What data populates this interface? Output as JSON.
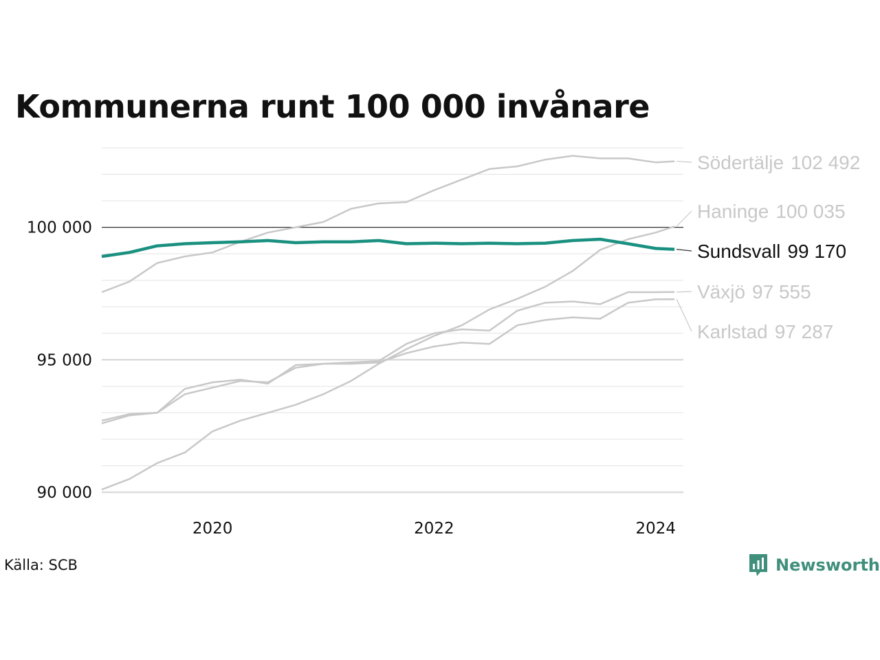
{
  "title": "Kommunerna runt 100 000 invånare",
  "source": "Källa: SCB",
  "brand": {
    "name": "Newsworthy",
    "icon": "newsworthy-bar-chart-icon",
    "color": "#3f8f7c"
  },
  "chart_data": {
    "type": "line",
    "title": "Kommunerna runt 100 000 invånare",
    "xlabel": "",
    "ylabel": "",
    "xlim": [
      2019.0,
      2024.25
    ],
    "ylim": [
      90000,
      103000
    ],
    "ytick_values": [
      90000,
      95000,
      100000
    ],
    "ytick_labels": [
      "90 000",
      "95 000",
      "100 000"
    ],
    "xtick_values": [
      2020,
      2022,
      2024
    ],
    "xtick_labels": [
      "2020",
      "2022",
      "2024"
    ],
    "minor_gridlines": [
      91000,
      92000,
      93000,
      94000,
      96000,
      97000,
      98000,
      99000,
      101000,
      102000,
      103000
    ],
    "reference_line": 100000,
    "grid": true,
    "legend": "end-labels-right",
    "highlight_color": "#1a9080",
    "muted_color": "#c8c8c8",
    "series": [
      {
        "name": "Södertälje",
        "end_value_label": "102 492",
        "highlight": false,
        "points": [
          [
            2019.0,
            97550
          ],
          [
            2019.25,
            97950
          ],
          [
            2019.5,
            98650
          ],
          [
            2019.75,
            98900
          ],
          [
            2020.0,
            99050
          ],
          [
            2020.25,
            99450
          ],
          [
            2020.5,
            99800
          ],
          [
            2020.75,
            100000
          ],
          [
            2021.0,
            100200
          ],
          [
            2021.25,
            100700
          ],
          [
            2021.5,
            100900
          ],
          [
            2021.75,
            100950
          ],
          [
            2022.0,
            101400
          ],
          [
            2022.25,
            101800
          ],
          [
            2022.5,
            102200
          ],
          [
            2022.75,
            102300
          ],
          [
            2023.0,
            102550
          ],
          [
            2023.25,
            102700
          ],
          [
            2023.5,
            102600
          ],
          [
            2023.75,
            102600
          ],
          [
            2024.0,
            102450
          ],
          [
            2024.17,
            102492
          ]
        ]
      },
      {
        "name": "Haninge",
        "end_value_label": "100 035",
        "highlight": false,
        "points": [
          [
            2019.0,
            90100
          ],
          [
            2019.25,
            90500
          ],
          [
            2019.5,
            91100
          ],
          [
            2019.75,
            91500
          ],
          [
            2020.0,
            92300
          ],
          [
            2020.25,
            92700
          ],
          [
            2020.5,
            93000
          ],
          [
            2020.75,
            93300
          ],
          [
            2021.0,
            93700
          ],
          [
            2021.25,
            94200
          ],
          [
            2021.5,
            94850
          ],
          [
            2021.75,
            95400
          ],
          [
            2022.0,
            95900
          ],
          [
            2022.25,
            96300
          ],
          [
            2022.5,
            96900
          ],
          [
            2022.75,
            97300
          ],
          [
            2023.0,
            97750
          ],
          [
            2023.25,
            98350
          ],
          [
            2023.5,
            99150
          ],
          [
            2023.75,
            99550
          ],
          [
            2024.0,
            99800
          ],
          [
            2024.17,
            100035
          ]
        ]
      },
      {
        "name": "Sundsvall",
        "end_value_label": "99 170",
        "highlight": true,
        "points": [
          [
            2019.0,
            98900
          ],
          [
            2019.25,
            99050
          ],
          [
            2019.5,
            99300
          ],
          [
            2019.75,
            99380
          ],
          [
            2020.0,
            99420
          ],
          [
            2020.25,
            99450
          ],
          [
            2020.5,
            99500
          ],
          [
            2020.75,
            99420
          ],
          [
            2021.0,
            99450
          ],
          [
            2021.25,
            99450
          ],
          [
            2021.5,
            99500
          ],
          [
            2021.75,
            99380
          ],
          [
            2022.0,
            99400
          ],
          [
            2022.25,
            99380
          ],
          [
            2022.5,
            99400
          ],
          [
            2022.75,
            99380
          ],
          [
            2023.0,
            99400
          ],
          [
            2023.25,
            99500
          ],
          [
            2023.5,
            99550
          ],
          [
            2023.75,
            99380
          ],
          [
            2024.0,
            99200
          ],
          [
            2024.17,
            99170
          ]
        ]
      },
      {
        "name": "Växjö",
        "end_value_label": "97 555",
        "highlight": false,
        "points": [
          [
            2019.0,
            92600
          ],
          [
            2019.25,
            92900
          ],
          [
            2019.5,
            93000
          ],
          [
            2019.75,
            93700
          ],
          [
            2020.0,
            93950
          ],
          [
            2020.25,
            94200
          ],
          [
            2020.5,
            94150
          ],
          [
            2020.75,
            94700
          ],
          [
            2021.0,
            94850
          ],
          [
            2021.25,
            94900
          ],
          [
            2021.5,
            94950
          ],
          [
            2021.75,
            95600
          ],
          [
            2022.0,
            96000
          ],
          [
            2022.25,
            96150
          ],
          [
            2022.5,
            96100
          ],
          [
            2022.75,
            96850
          ],
          [
            2023.0,
            97150
          ],
          [
            2023.25,
            97200
          ],
          [
            2023.5,
            97100
          ],
          [
            2023.75,
            97550
          ],
          [
            2024.0,
            97550
          ],
          [
            2024.17,
            97555
          ]
        ]
      },
      {
        "name": "Karlstad",
        "end_value_label": "97 287",
        "highlight": false,
        "points": [
          [
            2019.0,
            92700
          ],
          [
            2019.25,
            92950
          ],
          [
            2019.5,
            93000
          ],
          [
            2019.75,
            93900
          ],
          [
            2020.0,
            94150
          ],
          [
            2020.25,
            94250
          ],
          [
            2020.5,
            94100
          ],
          [
            2020.75,
            94800
          ],
          [
            2021.0,
            94850
          ],
          [
            2021.25,
            94850
          ],
          [
            2021.5,
            94900
          ],
          [
            2021.75,
            95250
          ],
          [
            2022.0,
            95500
          ],
          [
            2022.25,
            95650
          ],
          [
            2022.5,
            95600
          ],
          [
            2022.75,
            96300
          ],
          [
            2023.0,
            96500
          ],
          [
            2023.25,
            96600
          ],
          [
            2023.5,
            96550
          ],
          [
            2023.75,
            97150
          ],
          [
            2024.0,
            97280
          ],
          [
            2024.17,
            97287
          ]
        ]
      }
    ]
  }
}
